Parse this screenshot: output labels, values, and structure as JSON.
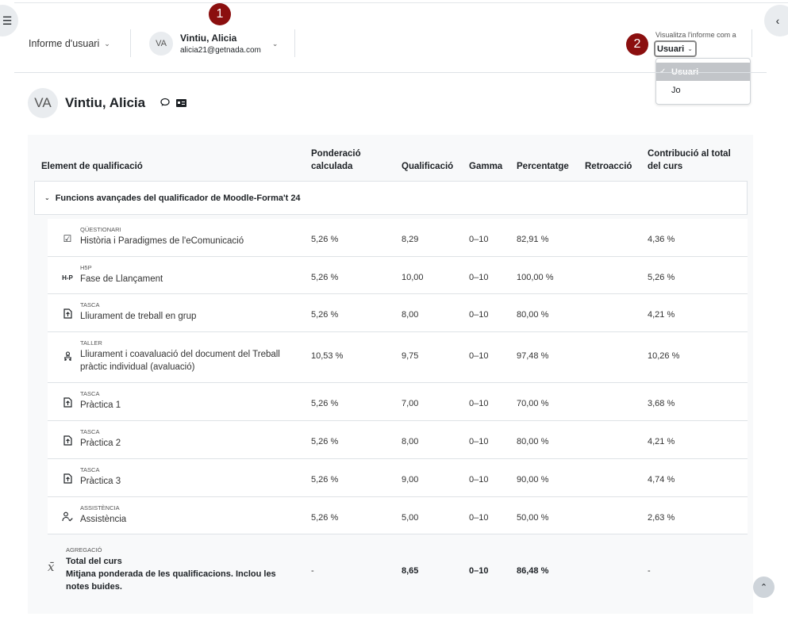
{
  "drawers": {
    "left_icon": "list-icon",
    "right_icon": "chevron-left-icon"
  },
  "callouts": [
    "1",
    "2"
  ],
  "report_selector": {
    "label": "Informe d'usuari"
  },
  "user_selector": {
    "initials": "VA",
    "name": "Vintiu, Alicia",
    "email": "alicia21@getnada.com"
  },
  "view_as": {
    "label": "Visualitza l'informe com a",
    "selected": "Usuari",
    "options": [
      {
        "label": "Usuari",
        "active": true
      },
      {
        "label": "Jo",
        "active": false
      }
    ]
  },
  "page_header": {
    "initials": "VA",
    "name": "Vintiu, Alicia"
  },
  "table": {
    "headers": {
      "item": "Element de qualificació",
      "weight_l1": "Ponderació",
      "weight_l2": "calculada",
      "grade": "Qualificació",
      "range": "Gamma",
      "percentage": "Percentatge",
      "feedback": "Retroacció",
      "contrib_l1": "Contribució al total",
      "contrib_l2": "del curs"
    },
    "category": "Funcions avançades del qualificador de Moodle-Forma't 24",
    "rows": [
      {
        "type": "QÜESTIONARI",
        "name_l1": "Història i Paradigmes de l'eComunicació",
        "name_l2": "",
        "icon": "quiz-icon",
        "weight": "5,26 %",
        "grade": "8,29",
        "range": "0–10",
        "percentage": "82,91 %",
        "feedback": "",
        "contribution": "4,36 %"
      },
      {
        "type": "H5P",
        "name_l1": "Fase de Llançament",
        "name_l2": "",
        "icon": "h5p-icon",
        "weight": "5,26 %",
        "grade": "10,00",
        "range": "0–10",
        "percentage": "100,00 %",
        "feedback": "",
        "contribution": "5,26 %"
      },
      {
        "type": "TASCA",
        "name_l1": "Lliurament de treball en grup",
        "name_l2": "",
        "icon": "assignment-icon",
        "weight": "5,26 %",
        "grade": "8,00",
        "range": "0–10",
        "percentage": "80,00 %",
        "feedback": "",
        "contribution": "4,21 %"
      },
      {
        "type": "TALLER",
        "name_l1": "Lliurament i coavaluació del document del Treball",
        "name_l2": "pràctic individual (avaluació)",
        "icon": "workshop-icon",
        "weight": "10,53 %",
        "grade": "9,75",
        "range": "0–10",
        "percentage": "97,48 %",
        "feedback": "",
        "contribution": "10,26 %"
      },
      {
        "type": "TASCA",
        "name_l1": "Pràctica 1",
        "name_l2": "",
        "icon": "assignment-icon",
        "weight": "5,26 %",
        "grade": "7,00",
        "range": "0–10",
        "percentage": "70,00 %",
        "feedback": "",
        "contribution": "3,68 %"
      },
      {
        "type": "TASCA",
        "name_l1": "Pràctica 2",
        "name_l2": "",
        "icon": "assignment-icon",
        "weight": "5,26 %",
        "grade": "8,00",
        "range": "0–10",
        "percentage": "80,00 %",
        "feedback": "",
        "contribution": "4,21 %"
      },
      {
        "type": "TASCA",
        "name_l1": "Pràctica 3",
        "name_l2": "",
        "icon": "assignment-icon",
        "weight": "5,26 %",
        "grade": "9,00",
        "range": "0–10",
        "percentage": "90,00 %",
        "feedback": "",
        "contribution": "4,74 %"
      },
      {
        "type": "ASSISTÈNCIA",
        "name_l1": "Assistència",
        "name_l2": "",
        "icon": "attendance-icon",
        "weight": "5,26 %",
        "grade": "5,00",
        "range": "0–10",
        "percentage": "50,00 %",
        "feedback": "",
        "contribution": "2,63 %"
      }
    ],
    "total": {
      "type": "AGREGACIÓ",
      "name_l1": "Total del curs",
      "name_l2": "Mitjana ponderada de les qualificacions. Inclou les",
      "name_l3": "notes buides.",
      "icon_glyph": "x̄",
      "weight": "-",
      "grade": "8,65",
      "range": "0–10",
      "percentage": "86,48 %",
      "feedback": "",
      "contribution": "-"
    }
  },
  "colors": {
    "callout": "#8b0f0f",
    "table_bg": "#f8f9fa",
    "border": "#dee2e6"
  }
}
